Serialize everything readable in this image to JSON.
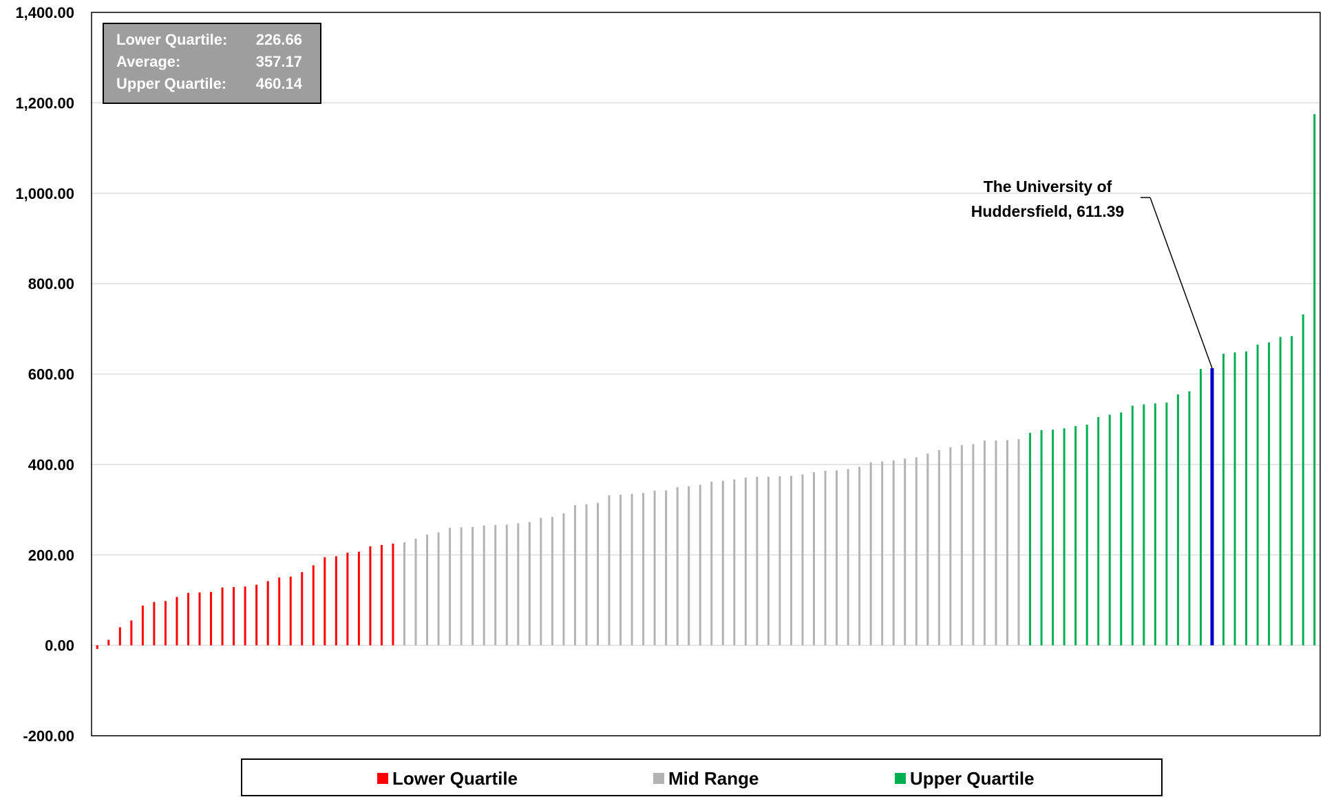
{
  "chart_data": {
    "type": "bar",
    "title": "",
    "xlabel": "",
    "ylabel": "",
    "ylim": [
      -200,
      1400
    ],
    "yticks": [
      "1,400.00",
      "1,200.00",
      "1,000.00",
      "800.00",
      "600.00",
      "400.00",
      "200.00",
      "0.00",
      "-200.00"
    ],
    "ytick_values": [
      1400,
      1200,
      1000,
      800,
      600,
      400,
      200,
      0,
      -200
    ],
    "grid": true,
    "colors": {
      "lower": "#ff0000",
      "mid": "#b3b3b3",
      "upper": "#00b050",
      "highlight": "#0000cc"
    },
    "values": [
      -8,
      12,
      40,
      55,
      88,
      96,
      98,
      107,
      116,
      117,
      118,
      128,
      129,
      130,
      134,
      142,
      150,
      152,
      162,
      177,
      195,
      197,
      205,
      207,
      219,
      222,
      225,
      228,
      236,
      245,
      250,
      260,
      261,
      262,
      265,
      266,
      267,
      270,
      273,
      282,
      284,
      292,
      310,
      312,
      315,
      332,
      333,
      335,
      337,
      342,
      343,
      350,
      352,
      355,
      362,
      364,
      367,
      371,
      373,
      373,
      374,
      375,
      378,
      383,
      386,
      387,
      390,
      395,
      405,
      407,
      409,
      413,
      416,
      424,
      432,
      438,
      443,
      445,
      453,
      453,
      454,
      456,
      470,
      476,
      477,
      480,
      485,
      488,
      505,
      510,
      515,
      530,
      533,
      535,
      537,
      555,
      562,
      611.39,
      613,
      645,
      648,
      650,
      665,
      670,
      682,
      684,
      732,
      1175
    ],
    "groups": [
      "lower",
      "lower",
      "lower",
      "lower",
      "lower",
      "lower",
      "lower",
      "lower",
      "lower",
      "lower",
      "lower",
      "lower",
      "lower",
      "lower",
      "lower",
      "lower",
      "lower",
      "lower",
      "lower",
      "lower",
      "lower",
      "lower",
      "lower",
      "lower",
      "lower",
      "lower",
      "lower",
      "mid",
      "mid",
      "mid",
      "mid",
      "mid",
      "mid",
      "mid",
      "mid",
      "mid",
      "mid",
      "mid",
      "mid",
      "mid",
      "mid",
      "mid",
      "mid",
      "mid",
      "mid",
      "mid",
      "mid",
      "mid",
      "mid",
      "mid",
      "mid",
      "mid",
      "mid",
      "mid",
      "mid",
      "mid",
      "mid",
      "mid",
      "mid",
      "mid",
      "mid",
      "mid",
      "mid",
      "mid",
      "mid",
      "mid",
      "mid",
      "mid",
      "mid",
      "mid",
      "mid",
      "mid",
      "mid",
      "mid",
      "mid",
      "mid",
      "mid",
      "mid",
      "mid",
      "mid",
      "mid",
      "mid",
      "upper",
      "upper",
      "upper",
      "upper",
      "upper",
      "upper",
      "upper",
      "upper",
      "upper",
      "upper",
      "upper",
      "upper",
      "upper",
      "upper",
      "upper",
      "upper",
      "highlight",
      "upper",
      "upper",
      "upper",
      "upper",
      "upper",
      "upper",
      "upper",
      "upper",
      "upper",
      "upper"
    ],
    "annotation": {
      "line1": "The University of",
      "line2": "Huddersfield, 611.39",
      "value": 611.39
    },
    "stats_box": [
      {
        "label": "Lower Quartile:",
        "value": "226.66"
      },
      {
        "label": "Average:",
        "value": "357.17"
      },
      {
        "label": "Upper Quartile:",
        "value": "460.14"
      }
    ],
    "legend": {
      "position": "bottom",
      "items": [
        {
          "label": "Lower Quartile",
          "color": "#ff0000"
        },
        {
          "label": "Mid Range",
          "color": "#b3b3b3"
        },
        {
          "label": "Upper Quartile",
          "color": "#00b050"
        }
      ]
    }
  }
}
